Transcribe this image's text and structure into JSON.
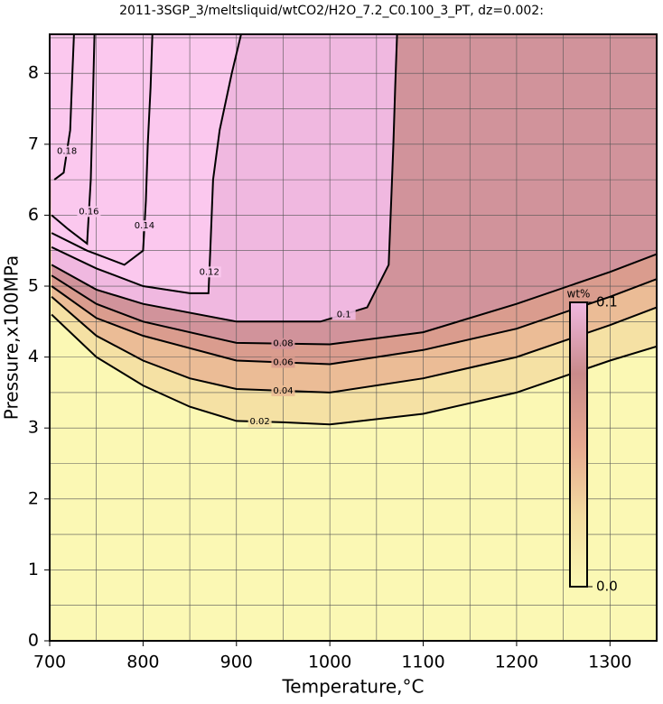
{
  "chart_data": {
    "type": "contour",
    "title": "2011-3SGP_3/meltsliquid/wtCO2/H2O_7.2_C0.100_3_PT, dz=0.002:",
    "x_label": "Temperature,°C",
    "y_label": "Pressure,x100MPa",
    "xlim": [
      700,
      1350
    ],
    "ylim": [
      0,
      8.55
    ],
    "xticks": [
      700,
      800,
      900,
      1000,
      1100,
      1200,
      1300
    ],
    "yticks": [
      0,
      1,
      2,
      3,
      4,
      5,
      6,
      7,
      8
    ],
    "grid": true,
    "colormap": [
      "#fbf8b4",
      "#f3dba0",
      "#e6a890",
      "#c98a8a",
      "#f0b8e0",
      "#fbc8ee"
    ],
    "colorbar": {
      "label": "wt%",
      "lim": [
        0,
        0.1
      ],
      "ticks": [
        {
          "value": 0,
          "label": "0.0"
        },
        0.1
      ]
    },
    "contours": [
      {
        "level": 0.02,
        "x": [
          702,
          750,
          800,
          850,
          900,
          950,
          1000,
          1100,
          1200,
          1300,
          1350
        ],
        "y": [
          4.6,
          4.0,
          3.6,
          3.3,
          3.1,
          3.08,
          3.05,
          3.2,
          3.5,
          3.95,
          4.15
        ]
      },
      {
        "level": 0.04,
        "x": [
          702,
          750,
          800,
          850,
          900,
          1000,
          1100,
          1200,
          1300,
          1350
        ],
        "y": [
          4.85,
          4.3,
          3.95,
          3.7,
          3.55,
          3.5,
          3.7,
          4.0,
          4.45,
          4.7
        ]
      },
      {
        "level": 0.06,
        "x": [
          702,
          750,
          800,
          900,
          1000,
          1100,
          1200,
          1300,
          1350
        ],
        "y": [
          5.0,
          4.55,
          4.3,
          3.95,
          3.9,
          4.1,
          4.4,
          4.85,
          5.1
        ]
      },
      {
        "level": 0.08,
        "x": [
          702,
          750,
          800,
          900,
          1000,
          1100,
          1200,
          1300,
          1350
        ],
        "y": [
          5.15,
          4.75,
          4.5,
          4.2,
          4.18,
          4.35,
          4.75,
          5.2,
          5.45
        ]
      },
      {
        "level": 0.1,
        "x": [
          702,
          750,
          800,
          900,
          990,
          1040,
          1063,
          1066,
          1068,
          1070,
          1072
        ],
        "y": [
          5.3,
          4.95,
          4.75,
          4.5,
          4.5,
          4.7,
          5.3,
          6.3,
          7.0,
          7.8,
          8.55
        ]
      },
      {
        "level": 0.12,
        "x": [
          702,
          750,
          800,
          850,
          870,
          872,
          875,
          882,
          895,
          905
        ],
        "y": [
          5.55,
          5.25,
          5.0,
          4.9,
          4.9,
          5.5,
          6.5,
          7.2,
          8.0,
          8.55
        ]
      },
      {
        "level": 0.14,
        "x": [
          702,
          740,
          780,
          800,
          803,
          805,
          808,
          810
        ],
        "y": [
          5.75,
          5.5,
          5.3,
          5.5,
          6.2,
          7.0,
          7.8,
          8.55
        ]
      },
      {
        "level": 0.16,
        "x": [
          702,
          720,
          740,
          744,
          746,
          748
        ],
        "y": [
          6.0,
          5.8,
          5.6,
          6.5,
          7.5,
          8.55
        ]
      },
      {
        "level": 0.18,
        "x": [
          705,
          715,
          722,
          724,
          726
        ],
        "y": [
          6.5,
          6.6,
          7.2,
          7.9,
          8.55
        ]
      }
    ]
  }
}
